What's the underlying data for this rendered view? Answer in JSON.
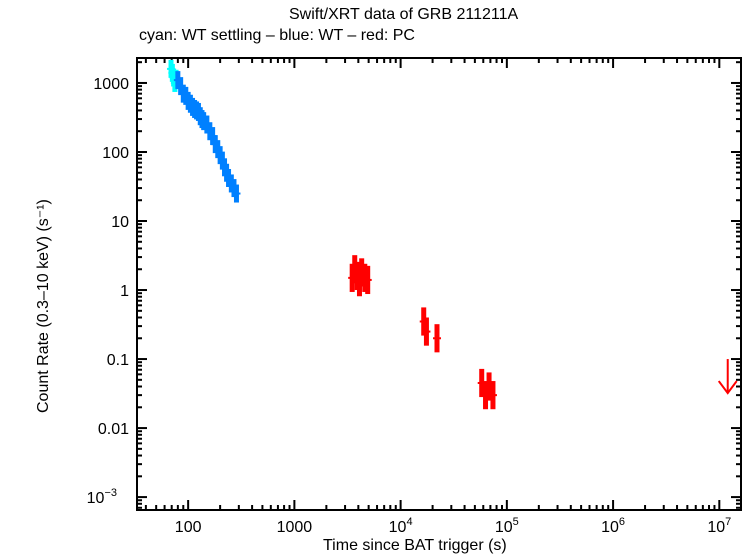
{
  "chart_data": {
    "type": "scatter",
    "title": "Swift/XRT data of GRB 211211A",
    "subtitle": "cyan: WT settling – blue: WT – red: PC",
    "xlabel": "Time since BAT trigger (s)",
    "ylabel": "Count Rate (0.3–10 keV) (s⁻¹)",
    "xscale": "log",
    "yscale": "log",
    "xlim": [
      33,
      16000000
    ],
    "ylim": [
      0.00065,
      2300
    ],
    "x_ticks": [
      {
        "v": 100,
        "label": "100"
      },
      {
        "v": 1000,
        "label": "1000"
      },
      {
        "v": 10000,
        "label": "10",
        "exp": "4"
      },
      {
        "v": 100000,
        "label": "10",
        "exp": "5"
      },
      {
        "v": 1000000,
        "label": "10",
        "exp": "6"
      },
      {
        "v": 10000000,
        "label": "10",
        "exp": "7"
      }
    ],
    "y_ticks": [
      {
        "v": 1000,
        "label": "1000"
      },
      {
        "v": 100,
        "label": "100"
      },
      {
        "v": 10,
        "label": "10"
      },
      {
        "v": 1,
        "label": "1"
      },
      {
        "v": 0.1,
        "label": "0.1"
      },
      {
        "v": 0.01,
        "label": "0.01"
      },
      {
        "v": 0.001,
        "label": "10",
        "exp": "−3"
      }
    ],
    "grid": false,
    "series": [
      {
        "name": "WT settling",
        "color": "#00ffff",
        "points": [
          [
            69,
            1600
          ],
          [
            71,
            1400
          ],
          [
            73,
            1200
          ],
          [
            75,
            1000
          ],
          [
            77,
            1150
          ]
        ]
      },
      {
        "name": "WT",
        "color": "#0080ff",
        "points": [
          [
            80,
            1100
          ],
          [
            85,
            900
          ],
          [
            90,
            700
          ],
          [
            95,
            650
          ],
          [
            100,
            550
          ],
          [
            105,
            500
          ],
          [
            110,
            450
          ],
          [
            115,
            420
          ],
          [
            120,
            400
          ],
          [
            125,
            380
          ],
          [
            130,
            330
          ],
          [
            135,
            300
          ],
          [
            140,
            280
          ],
          [
            150,
            250
          ],
          [
            160,
            200
          ],
          [
            170,
            170
          ],
          [
            180,
            130
          ],
          [
            190,
            110
          ],
          [
            200,
            90
          ],
          [
            210,
            75
          ],
          [
            220,
            60
          ],
          [
            230,
            50
          ],
          [
            240,
            42
          ],
          [
            255,
            35
          ],
          [
            270,
            30
          ],
          [
            285,
            25
          ]
        ]
      },
      {
        "name": "PC",
        "color": "#ff0000",
        "points": [
          [
            3500,
            1.5
          ],
          [
            3700,
            2.0
          ],
          [
            3900,
            1.6
          ],
          [
            4100,
            1.3
          ],
          [
            4300,
            1.8
          ],
          [
            4600,
            1.5
          ],
          [
            4900,
            1.4
          ],
          [
            16500,
            0.35
          ],
          [
            17500,
            0.25
          ],
          [
            22000,
            0.2
          ],
          [
            58000,
            0.045
          ],
          [
            63000,
            0.03
          ],
          [
            68000,
            0.04
          ],
          [
            74000,
            0.03
          ]
        ]
      }
    ],
    "upper_limits": [
      {
        "x": 12000000,
        "y": 0.1,
        "color": "#ff0000"
      }
    ]
  }
}
